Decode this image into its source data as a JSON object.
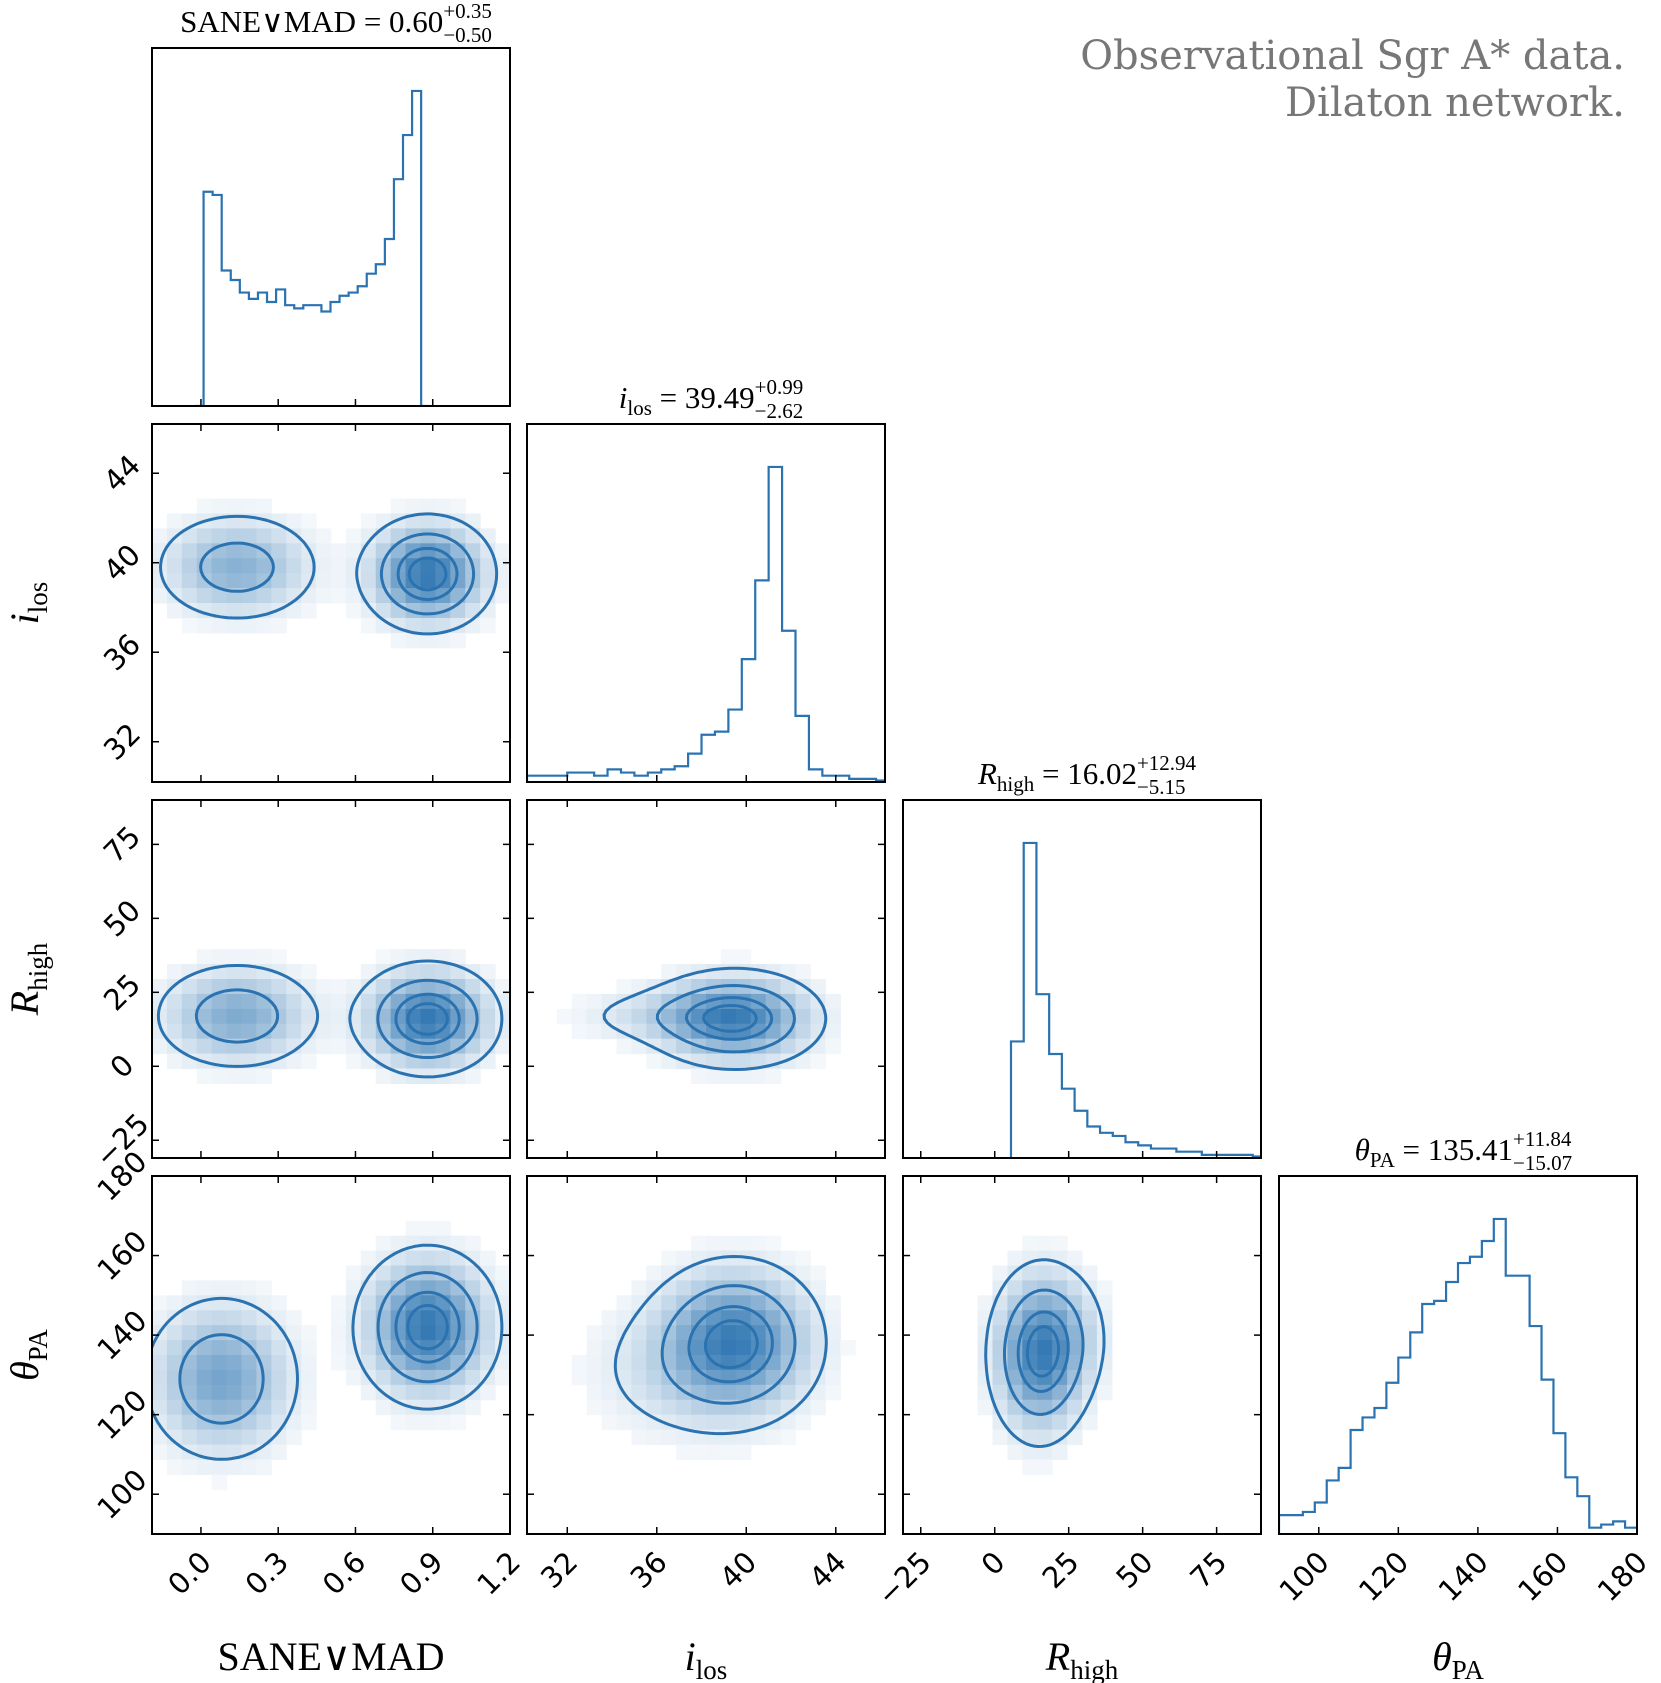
{
  "figure": {
    "annotation_line1": "Observational Sgr A* data.",
    "annotation_line2": "Dilaton network."
  },
  "chart_data": {
    "type": "corner",
    "series_color": "#2b73b0",
    "parameters": [
      {
        "key": "sane",
        "axis_label": "SANE∨MAD",
        "title_name": "SANE∨MAD",
        "title_median": "0.60",
        "title_plus": "+0.35",
        "title_minus": "−0.50",
        "range": [
          -0.19,
          1.2
        ],
        "ticks": [
          0.0,
          0.3,
          0.6,
          0.9,
          1.2
        ],
        "tick_labels": [
          "0.0",
          "0.3",
          "0.6",
          "0.9",
          "1.2"
        ],
        "hist": {
          "bin_start": -0.025,
          "bin_width": 0.0352,
          "counts": [
            0.0,
            0.68,
            0.67,
            0.43,
            0.4,
            0.36,
            0.34,
            0.36,
            0.33,
            0.37,
            0.32,
            0.31,
            0.32,
            0.32,
            0.3,
            0.33,
            0.35,
            0.36,
            0.38,
            0.42,
            0.45,
            0.53,
            0.72,
            0.86,
            1.0,
            0.0
          ]
        }
      },
      {
        "key": "ilos",
        "axis_label": "i",
        "axis_sub": "los",
        "title_name": "i",
        "title_sub": "los",
        "title_median": "39.49",
        "title_plus": "+0.99",
        "title_minus": "−2.62",
        "range": [
          30.2,
          46.2
        ],
        "ticks": [
          32,
          36,
          40,
          44
        ],
        "tick_labels": [
          "32",
          "36",
          "40",
          "44"
        ],
        "hist": {
          "bin_start": 30.2,
          "bin_width": 0.6,
          "counts": [
            0.02,
            0.02,
            0.02,
            0.03,
            0.03,
            0.02,
            0.04,
            0.03,
            0.02,
            0.03,
            0.04,
            0.05,
            0.09,
            0.15,
            0.16,
            0.23,
            0.39,
            0.64,
            1.0,
            0.48,
            0.21,
            0.04,
            0.02,
            0.02,
            0.01,
            0.01,
            0.005
          ]
        }
      },
      {
        "key": "rhigh",
        "axis_label": "R",
        "axis_sub": "high",
        "title_name": "R",
        "title_sub": "high",
        "title_median": "16.02",
        "title_plus": "+12.94",
        "title_minus": "−5.15",
        "range": [
          -31,
          90
        ],
        "ticks": [
          -25,
          0,
          25,
          50,
          75
        ],
        "tick_labels": [
          "−25",
          "0",
          "25",
          "50",
          "75"
        ],
        "hist": {
          "bin_start": 5.5,
          "bin_width": 4.3,
          "counts": [
            0.37,
            1.0,
            0.52,
            0.33,
            0.22,
            0.15,
            0.1,
            0.08,
            0.07,
            0.05,
            0.04,
            0.03,
            0.03,
            0.02,
            0.02,
            0.01,
            0.01,
            0.01,
            0.01,
            0.005
          ]
        }
      },
      {
        "key": "theta",
        "axis_label": "θ",
        "axis_sub": "PA",
        "title_name": "θ",
        "title_sub": "PA",
        "title_median": "135.41",
        "title_plus": "+11.84",
        "title_minus": "−15.07",
        "range": [
          90,
          180
        ],
        "ticks": [
          100,
          120,
          140,
          160,
          180
        ],
        "tick_labels": [
          "100",
          "120",
          "140",
          "160",
          "180"
        ],
        "hist": {
          "bin_start": 90,
          "bin_width": 3,
          "counts": [
            0.06,
            0.06,
            0.07,
            0.1,
            0.17,
            0.21,
            0.33,
            0.37,
            0.4,
            0.48,
            0.56,
            0.64,
            0.73,
            0.74,
            0.8,
            0.86,
            0.88,
            0.93,
            1.0,
            0.82,
            0.82,
            0.66,
            0.49,
            0.32,
            0.18,
            0.12,
            0.02,
            0.03,
            0.04,
            0.02
          ]
        }
      }
    ],
    "contour_levels": [
      0.12,
      0.39,
      0.68,
      0.86
    ],
    "joint": {
      "sane_ilos": {
        "modes": [
          {
            "x": 0.14,
            "y": 39.8,
            "sx": 0.17,
            "sy": 1.3,
            "w": 0.55
          },
          {
            "x": 0.88,
            "y": 39.5,
            "sx": 0.13,
            "sy": 1.3,
            "w": 1.0
          }
        ]
      },
      "sane_rhigh": {
        "modes": [
          {
            "x": 0.14,
            "y": 17,
            "sx": 0.17,
            "sy": 9.5,
            "w": 0.6
          },
          {
            "x": 0.88,
            "y": 16,
            "sx": 0.14,
            "sy": 9.5,
            "w": 1.0
          }
        ]
      },
      "sane_theta": {
        "modes": [
          {
            "x": 0.08,
            "y": 129,
            "sx": 0.16,
            "sy": 11,
            "w": 0.65
          },
          {
            "x": 0.88,
            "y": 142,
            "sx": 0.14,
            "sy": 10,
            "w": 1.0
          }
        ]
      },
      "ilos_rhigh": {
        "modes": [
          {
            "x": 39.5,
            "y": 16,
            "sx": 2.0,
            "sy": 8.5,
            "w": 1.0
          },
          {
            "x": 36.5,
            "y": 17,
            "sx": 2.6,
            "sy": 5.5,
            "w": 0.22
          }
        ]
      },
      "ilos_theta": {
        "modes": [
          {
            "x": 39.5,
            "y": 138.5,
            "sx": 2.0,
            "sy": 10.5,
            "w": 1.0
          },
          {
            "x": 37.0,
            "y": 131,
            "sx": 2.6,
            "sy": 10.5,
            "w": 0.2
          }
        ]
      },
      "rhigh_theta": {
        "modes": [
          {
            "x": 15,
            "y": 135,
            "sx": 9.0,
            "sy": 11.5,
            "w": 1.0
          },
          {
            "x": 24,
            "y": 140,
            "sx": 9.0,
            "sy": 9.5,
            "w": 0.25
          }
        ]
      }
    }
  }
}
